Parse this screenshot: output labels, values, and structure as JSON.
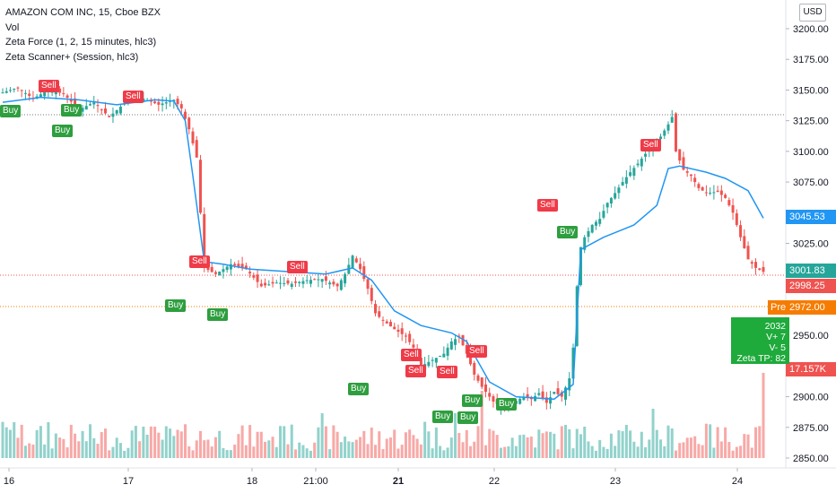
{
  "header": {
    "symbol": "AMAZON COM INC, 15, Cboe BZX",
    "indicators": [
      "Vol",
      "Zeta Force (1, 2, 15 minutes, hlc3)",
      "Zeta Scanner+ (Session, hlc3)"
    ]
  },
  "currency_button": "USD",
  "price_axis": {
    "ticks": [
      "3200.00",
      "3175.00",
      "3150.00",
      "3125.00",
      "3100.00",
      "3075.00",
      "3050.00",
      "3025.00",
      "2975.00",
      "2950.00",
      "2900.00",
      "2875.00",
      "2850.00"
    ]
  },
  "time_axis": {
    "labels": [
      "16",
      "17",
      "18",
      "21:00",
      "21",
      "22",
      "23",
      "24"
    ]
  },
  "price_tags": {
    "zeta_line": {
      "value": "3045.53",
      "color": "#2196f3"
    },
    "last_price": {
      "value": "3001.83",
      "color": "#26a69a"
    },
    "prev_close": {
      "value": "2998.25",
      "color": "#ef5350"
    },
    "premarket": {
      "label": "Pre",
      "value": "2972.00",
      "color": "#f57c00"
    },
    "volume": {
      "value": "17.157K",
      "color": "#ef5350"
    }
  },
  "zeta_box": {
    "lines": [
      "2032",
      "V+ 7",
      "V-  5",
      "Zeta TP: 82"
    ]
  },
  "signals": [
    {
      "label": "Sell",
      "type": "sell"
    },
    {
      "label": "Buy",
      "type": "buy"
    },
    {
      "label": "Buy",
      "type": "buy"
    },
    {
      "label": "Buy",
      "type": "buy"
    },
    {
      "label": "Sell",
      "type": "sell"
    },
    {
      "label": "Sell",
      "type": "sell"
    },
    {
      "label": "Buy",
      "type": "buy"
    },
    {
      "label": "Buy",
      "type": "buy"
    },
    {
      "label": "Sell",
      "type": "sell"
    },
    {
      "label": "Buy",
      "type": "buy"
    },
    {
      "label": "Sell",
      "type": "sell"
    },
    {
      "label": "Sell",
      "type": "sell"
    },
    {
      "label": "Sell",
      "type": "sell"
    },
    {
      "label": "Sell",
      "type": "sell"
    },
    {
      "label": "Buy",
      "type": "buy"
    },
    {
      "label": "Buy",
      "type": "buy"
    },
    {
      "label": "Buy",
      "type": "buy"
    },
    {
      "label": "Buy",
      "type": "buy"
    },
    {
      "label": "Sell",
      "type": "sell"
    },
    {
      "label": "Buy",
      "type": "buy"
    },
    {
      "label": "Sell",
      "type": "sell"
    }
  ],
  "chart_data": {
    "type": "candlestick",
    "title": "AMAZON COM INC, 15, Cboe BZX",
    "ylim": [
      2840,
      3210
    ],
    "up_color": "#26a69a",
    "down_color": "#ef5350",
    "line_color": "#2196f3",
    "close_path": [
      [
        0,
        3148
      ],
      [
        4,
        3152
      ],
      [
        8,
        3143
      ],
      [
        12,
        3150
      ],
      [
        16,
        3147
      ],
      [
        20,
        3134
      ],
      [
        24,
        3140
      ],
      [
        28,
        3128
      ],
      [
        33,
        3142
      ],
      [
        37,
        3143
      ],
      [
        41,
        3138
      ],
      [
        45,
        3142
      ],
      [
        47,
        3135
      ],
      [
        49,
        3118
      ],
      [
        51,
        3095
      ],
      [
        53,
        3005
      ],
      [
        56,
        3000
      ],
      [
        60,
        3008
      ],
      [
        64,
        3004
      ],
      [
        68,
        2990
      ],
      [
        72,
        2993
      ],
      [
        76,
        2992
      ],
      [
        80,
        2995
      ],
      [
        84,
        2996
      ],
      [
        88,
        2990
      ],
      [
        90,
        3000
      ],
      [
        92,
        3015
      ],
      [
        94,
        3004
      ],
      [
        96,
        2988
      ],
      [
        98,
        2968
      ],
      [
        100,
        2962
      ],
      [
        103,
        2955
      ],
      [
        106,
        2949
      ],
      [
        108,
        2940
      ],
      [
        110,
        2925
      ],
      [
        113,
        2930
      ],
      [
        116,
        2935
      ],
      [
        118,
        2945
      ],
      [
        120,
        2949
      ],
      [
        122,
        2935
      ],
      [
        124,
        2918
      ],
      [
        126,
        2908
      ],
      [
        129,
        2896
      ],
      [
        132,
        2890
      ],
      [
        134,
        2895
      ],
      [
        137,
        2900
      ],
      [
        139,
        2898
      ],
      [
        141,
        2903
      ],
      [
        143,
        2895
      ],
      [
        145,
        2904
      ],
      [
        147,
        2900
      ],
      [
        149,
        2915
      ],
      [
        150,
        2940
      ],
      [
        151,
        2990
      ],
      [
        152,
        3022
      ],
      [
        153,
        3030
      ],
      [
        155,
        3040
      ],
      [
        157,
        3045
      ],
      [
        159,
        3058
      ],
      [
        161,
        3066
      ],
      [
        163,
        3075
      ],
      [
        165,
        3083
      ],
      [
        167,
        3090
      ],
      [
        169,
        3098
      ],
      [
        171,
        3103
      ],
      [
        173,
        3112
      ],
      [
        175,
        3122
      ],
      [
        176,
        3128
      ],
      [
        177,
        3100
      ],
      [
        179,
        3085
      ],
      [
        181,
        3080
      ],
      [
        183,
        3070
      ],
      [
        185,
        3066
      ],
      [
        188,
        3067
      ],
      [
        190,
        3062
      ],
      [
        192,
        3050
      ],
      [
        194,
        3030
      ],
      [
        196,
        3012
      ],
      [
        198,
        3005
      ],
      [
        200,
        3001.83
      ]
    ],
    "zeta_force_path": [
      [
        0,
        3140
      ],
      [
        10,
        3144
      ],
      [
        20,
        3142
      ],
      [
        30,
        3138
      ],
      [
        40,
        3142
      ],
      [
        45,
        3141
      ],
      [
        48,
        3125
      ],
      [
        50,
        3080
      ],
      [
        53,
        3010
      ],
      [
        58,
        3008
      ],
      [
        65,
        3004
      ],
      [
        75,
        3002
      ],
      [
        85,
        3000
      ],
      [
        92,
        3005
      ],
      [
        97,
        2995
      ],
      [
        103,
        2970
      ],
      [
        110,
        2958
      ],
      [
        118,
        2952
      ],
      [
        122,
        2945
      ],
      [
        128,
        2912
      ],
      [
        135,
        2900
      ],
      [
        145,
        2898
      ],
      [
        150,
        2910
      ],
      [
        152,
        3020
      ],
      [
        158,
        3030
      ],
      [
        166,
        3040
      ],
      [
        172,
        3056
      ],
      [
        175,
        3086
      ],
      [
        178,
        3088
      ],
      [
        185,
        3083
      ],
      [
        190,
        3078
      ],
      [
        196,
        3068
      ],
      [
        200,
        3045.53
      ]
    ],
    "volume_max": 17157,
    "sessions": [
      "16",
      "17",
      "18",
      "21",
      "22",
      "23",
      "24"
    ]
  }
}
